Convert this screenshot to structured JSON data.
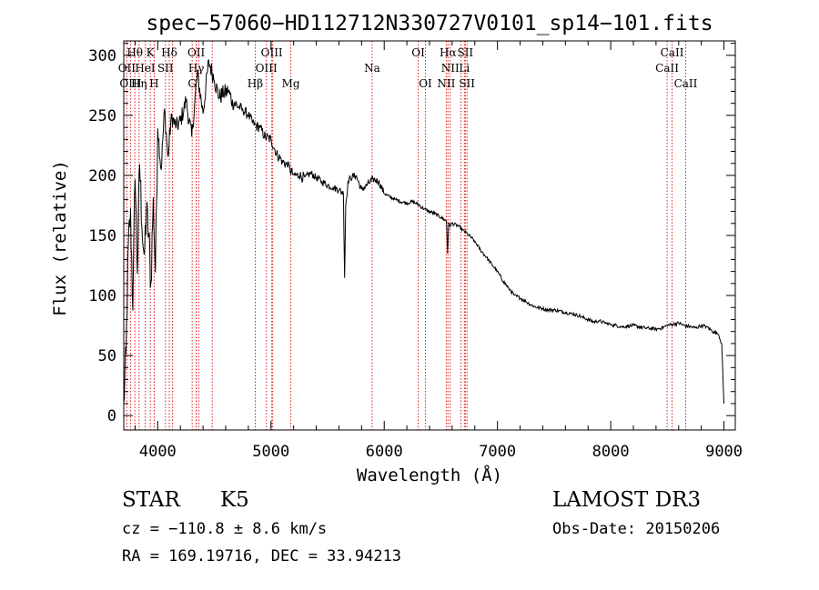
{
  "chart_data": {
    "type": "line",
    "title": "spec−57060−HD112712N330727V0101_sp14−101.fits",
    "xlabel": "Wavelength (Å)",
    "ylabel": "Flux (relative)",
    "xlim": [
      3700,
      9100
    ],
    "ylim": [
      -12,
      312
    ],
    "xticks": [
      4000,
      5000,
      6000,
      7000,
      8000,
      9000
    ],
    "yticks": [
      0,
      50,
      100,
      150,
      200,
      250,
      300
    ],
    "x_minor_step": 200,
    "y_minor_step": 10,
    "series": [
      {
        "name": "flux",
        "x": [
          3700,
          3720,
          3740,
          3760,
          3780,
          3800,
          3820,
          3840,
          3860,
          3880,
          3900,
          3920,
          3940,
          3960,
          3980,
          4000,
          4030,
          4060,
          4090,
          4120,
          4160,
          4200,
          4250,
          4300,
          4350,
          4400,
          4450,
          4500,
          4540,
          4580,
          4620,
          4660,
          4700,
          4750,
          4800,
          4850,
          4900,
          4950,
          5000,
          5050,
          5100,
          5150,
          5200,
          5250,
          5300,
          5350,
          5400,
          5450,
          5500,
          5550,
          5600,
          5640,
          5650,
          5660,
          5680,
          5700,
          5750,
          5800,
          5850,
          5900,
          5950,
          6000,
          6050,
          6100,
          6150,
          6200,
          6250,
          6300,
          6350,
          6400,
          6450,
          6500,
          6550,
          6560,
          6570,
          6580,
          6600,
          6650,
          6700,
          6750,
          6800,
          6850,
          6900,
          6950,
          7000,
          7050,
          7100,
          7150,
          7200,
          7250,
          7300,
          7350,
          7400,
          7450,
          7500,
          7550,
          7600,
          7650,
          7700,
          7750,
          7800,
          7850,
          7900,
          7950,
          8000,
          8100,
          8200,
          8300,
          8400,
          8450,
          8500,
          8550,
          8600,
          8650,
          8700,
          8750,
          8800,
          8850,
          8900,
          8950,
          8980,
          9000
        ],
        "y": [
          10,
          50,
          140,
          170,
          90,
          200,
          120,
          210,
          160,
          130,
          170,
          150,
          110,
          180,
          120,
          240,
          205,
          255,
          215,
          250,
          240,
          245,
          262,
          232,
          285,
          252,
          295,
          280,
          265,
          268,
          270,
          262,
          258,
          255,
          250,
          242,
          240,
          232,
          230,
          218,
          212,
          208,
          200,
          200,
          198,
          202,
          198,
          195,
          192,
          190,
          188,
          185,
          115,
          175,
          195,
          198,
          200,
          188,
          192,
          197,
          195,
          185,
          182,
          180,
          178,
          177,
          178,
          176,
          172,
          170,
          168,
          165,
          162,
          135,
          160,
          158,
          160,
          158,
          154,
          150,
          145,
          138,
          132,
          126,
          120,
          112,
          106,
          100,
          98,
          95,
          92,
          90,
          89,
          88,
          88,
          87,
          86,
          85,
          84,
          82,
          80,
          78,
          79,
          77,
          76,
          74,
          75,
          73,
          72,
          73,
          75,
          76,
          77,
          75,
          74,
          73,
          75,
          74,
          70,
          68,
          60,
          10
        ]
      }
    ],
    "spectral_lines": [
      {
        "label": "Hθ",
        "x": 3798,
        "row": 1
      },
      {
        "label": "K",
        "x": 3934,
        "row": 1
      },
      {
        "label": "Hδ",
        "x": 4102,
        "row": 1
      },
      {
        "label": "OII",
        "x": 4340,
        "row": 1
      },
      {
        "label": "OIII",
        "x": 5007,
        "row": 1
      },
      {
        "label": "OI",
        "x": 6300,
        "row": 1
      },
      {
        "label": "Hα",
        "x": 6563,
        "row": 1
      },
      {
        "label": "SII",
        "x": 6716,
        "row": 1
      },
      {
        "label": "CaII",
        "x": 8542,
        "row": 1
      },
      {
        "label": "OII",
        "x": 3727,
        "row": 2
      },
      {
        "label": "HeI",
        "x": 3889,
        "row": 2
      },
      {
        "label": "SII",
        "x": 4068,
        "row": 2
      },
      {
        "label": "Hγ",
        "x": 4340,
        "row": 2
      },
      {
        "label": "OIII",
        "x": 4959,
        "row": 2
      },
      {
        "label": "Na",
        "x": 5893,
        "row": 2
      },
      {
        "label": "NII",
        "x": 6583,
        "row": 2
      },
      {
        "label": "Li",
        "x": 6708,
        "row": 2
      },
      {
        "label": "CaII",
        "x": 8498,
        "row": 2
      },
      {
        "label": "OIII",
        "x": 3760,
        "row": 3
      },
      {
        "label": "Hη",
        "x": 3835,
        "row": 3
      },
      {
        "label": "H",
        "x": 3968,
        "row": 3
      },
      {
        "label": "G",
        "x": 4304,
        "row": 3
      },
      {
        "label": "Hβ",
        "x": 4861,
        "row": 3
      },
      {
        "label": "Mg",
        "x": 5175,
        "row": 3
      },
      {
        "label": "OI",
        "x": 6364,
        "row": 3
      },
      {
        "label": "NII",
        "x": 6548,
        "row": 3
      },
      {
        "label": "SII",
        "x": 6731,
        "row": 3
      },
      {
        "label": "CaII",
        "x": 8662,
        "row": 3
      }
    ],
    "extra_line_positions": [
      3889,
      3970,
      4130,
      4363,
      4481,
      5015,
      6678
    ]
  },
  "info": {
    "object_class": "STAR",
    "subclass": "K5",
    "survey": "LAMOST DR3",
    "cz": "cz = −110.8 ± 8.6 km/s",
    "obs_date": "Obs-Date: 20150206",
    "coords": "RA = 169.19716, DEC =  33.94213"
  }
}
